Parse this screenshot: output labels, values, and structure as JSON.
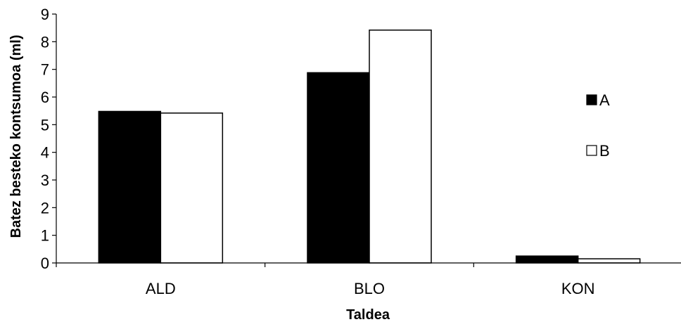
{
  "chart_data": {
    "type": "bar",
    "title": "",
    "xlabel": "Taldea",
    "ylabel": "Batez besteko kontsumoa (ml)",
    "categories": [
      "ALD",
      "BLO",
      "KON"
    ],
    "series": [
      {
        "name": "A",
        "values": [
          5.48,
          6.88,
          0.25
        ],
        "color": "#000000"
      },
      {
        "name": "B",
        "values": [
          5.42,
          8.42,
          0.15
        ],
        "color": "#ffffff"
      }
    ],
    "ylim": [
      0,
      9
    ],
    "yticks": [
      0,
      1,
      2,
      3,
      4,
      5,
      6,
      7,
      8,
      9
    ],
    "grid": false,
    "legend": "right",
    "bar_outline": "#000000"
  }
}
